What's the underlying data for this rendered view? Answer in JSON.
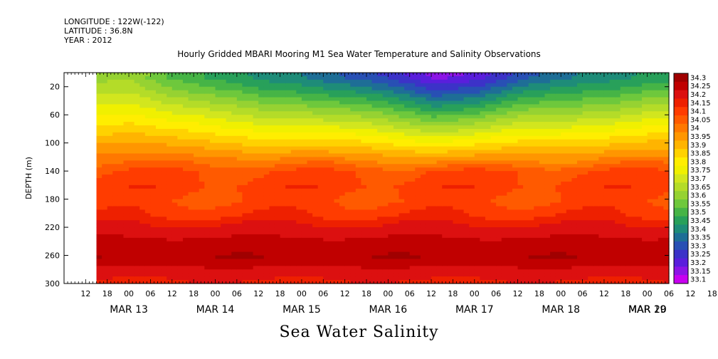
{
  "header": {
    "longitude": "LONGITUDE : 122W(-122)",
    "latitude": "LATITUDE : 36.8N",
    "year": "YEAR : 2012"
  },
  "chart_data": {
    "type": "heatmap",
    "title": "Hourly Gridded MBARI Mooring M1 Sea Water Temperature and Salinity Observations",
    "xlabel": "Sea Water Salinity",
    "ylabel": "DEPTH (m)",
    "ylim": [
      300,
      0
    ],
    "yticks": [
      20,
      60,
      100,
      140,
      180,
      220,
      260,
      300
    ],
    "x_hour_ticks": [
      "12",
      "18",
      "00",
      "06",
      "12",
      "18",
      "00",
      "06",
      "12",
      "18",
      "00",
      "06",
      "12",
      "18",
      "00",
      "06",
      "12",
      "18",
      "00",
      "06",
      "12",
      "18",
      "00",
      "06",
      "12",
      "18",
      "00",
      "06",
      "12",
      "18",
      "00",
      "06"
    ],
    "x_day_labels": [
      "MAR 13",
      "MAR 14",
      "MAR 15",
      "MAR 16",
      "MAR 17",
      "MAR 18",
      "MAR 19",
      "MAR 20"
    ],
    "x_range_hours": [
      6,
      174
    ],
    "colorbar": {
      "levels": [
        "34.3",
        "34.25",
        "34.2",
        "34.15",
        "34.1",
        "34.05",
        "34",
        "33.95",
        "33.9",
        "33.85",
        "33.8",
        "33.75",
        "33.7",
        "33.65",
        "33.6",
        "33.55",
        "33.5",
        "33.45",
        "33.4",
        "33.35",
        "33.3",
        "33.25",
        "33.2",
        "33.15",
        "33.1"
      ],
      "colors": [
        "#a00000",
        "#c00000",
        "#dc1010",
        "#ee2000",
        "#ff3c00",
        "#ff5a00",
        "#ff7800",
        "#ff9600",
        "#ffb400",
        "#ffd200",
        "#ffee00",
        "#f0f000",
        "#d2e61e",
        "#b4dc28",
        "#96d232",
        "#6ec83c",
        "#46b446",
        "#28a05a",
        "#1e8c78",
        "#1e6e96",
        "#2850b4",
        "#3c32c8",
        "#5a1edc",
        "#8c14e6",
        "#c800f0"
      ]
    },
    "depth_profile": {
      "depths": [
        5,
        20,
        35,
        50,
        65,
        80,
        95,
        110,
        125,
        140,
        160,
        180,
        200,
        215,
        230,
        245,
        260,
        275,
        290,
        300
      ],
      "values": [
        33.55,
        33.6,
        33.66,
        33.72,
        33.78,
        33.84,
        33.9,
        33.96,
        34.02,
        34.08,
        34.1,
        34.08,
        34.12,
        34.18,
        34.22,
        34.26,
        34.27,
        34.22,
        34.18,
        34.16
      ]
    },
    "surface_salinity_by_day": {
      "x_hours": [
        12,
        24,
        36,
        48,
        60,
        72,
        84,
        96,
        108,
        120,
        132,
        144,
        156,
        168,
        174
      ],
      "values": [
        33.6,
        33.62,
        33.52,
        33.45,
        33.4,
        33.38,
        33.32,
        33.25,
        33.15,
        33.2,
        33.3,
        33.35,
        33.4,
        33.45,
        33.45
      ]
    },
    "missing_data_intervals_hours": [
      [
        6,
        15
      ]
    ]
  }
}
